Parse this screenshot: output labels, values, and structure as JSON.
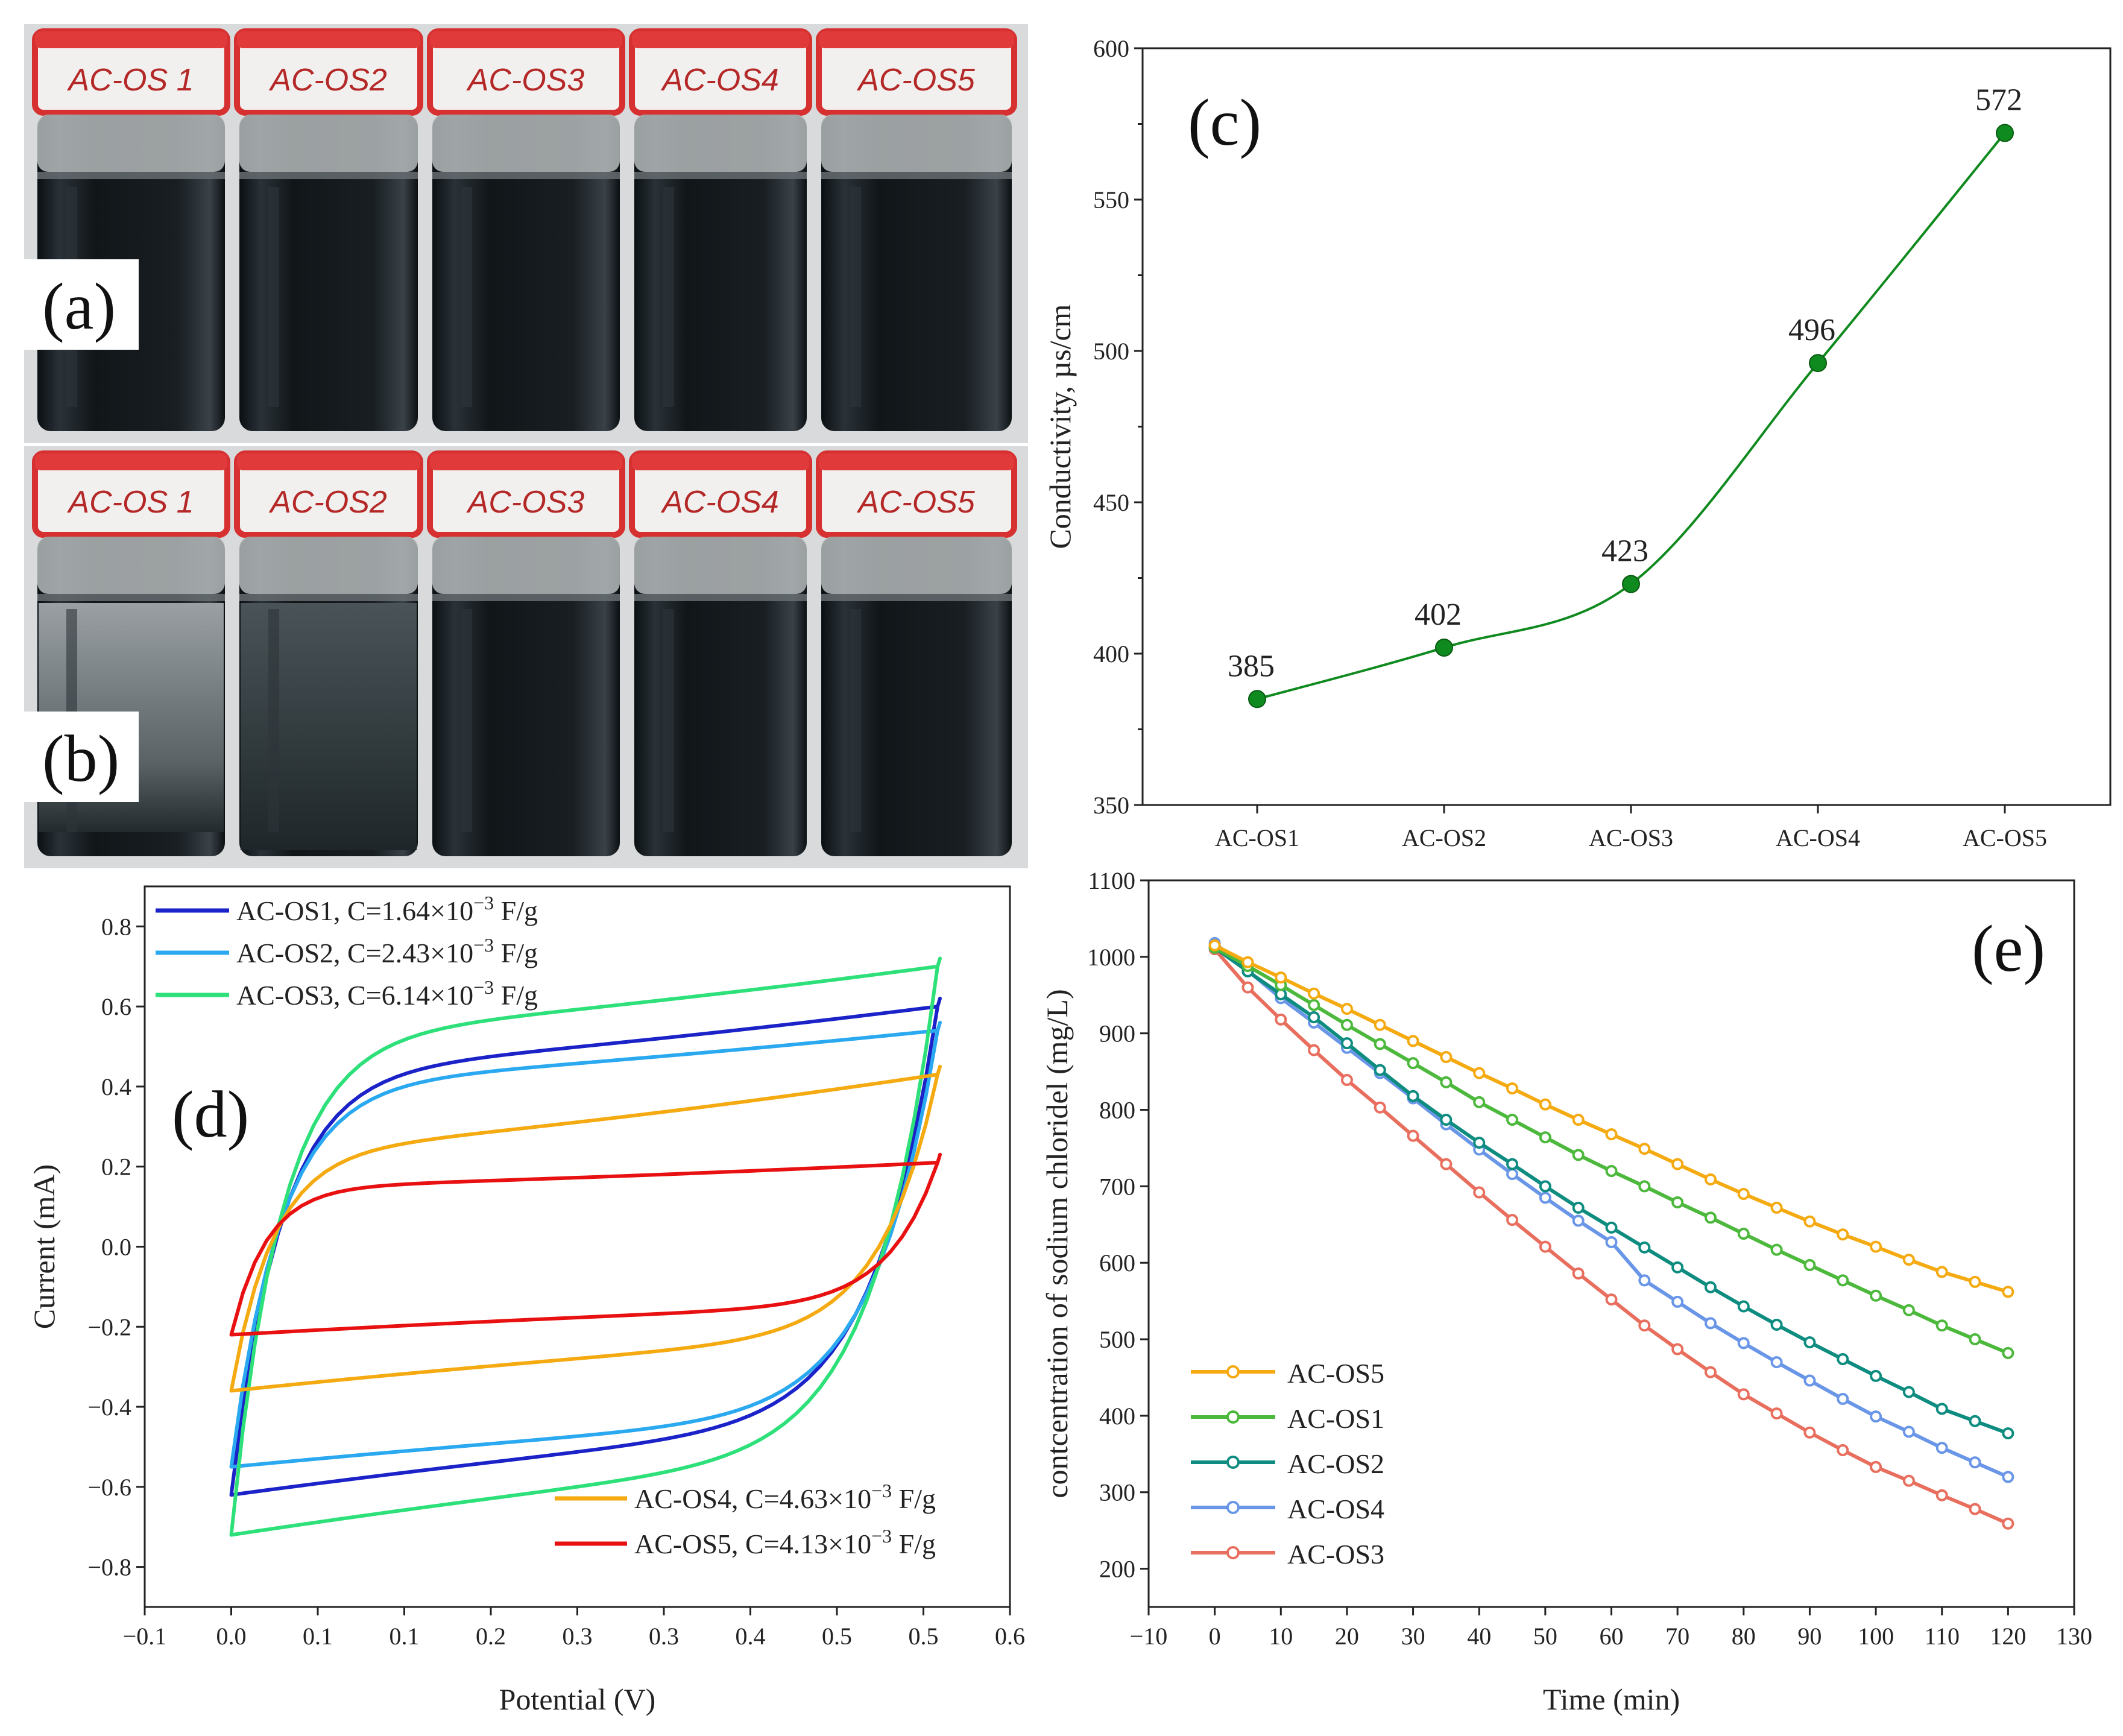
{
  "photos": {
    "a": {
      "label": "(a)",
      "vials": [
        "AC-OS 1",
        "AC-OS2",
        "AC-OS3",
        "AC-OS4",
        "AC-OS5"
      ]
    },
    "b": {
      "label": "(b)",
      "vials": [
        "AC-OS 1",
        "AC-OS2",
        "AC-OS3",
        "AC-OS4",
        "AC-OS5"
      ]
    }
  },
  "chart_data": [
    {
      "id": "c",
      "type": "line",
      "panel_label": "(c)",
      "title": "",
      "xlabel": "",
      "ylabel": "Conductivity, µs/cm",
      "categories": [
        "AC-OS1",
        "AC-OS2",
        "AC-OS3",
        "AC-OS4",
        "AC-OS5"
      ],
      "values": [
        385,
        402,
        423,
        496,
        572
      ],
      "data_labels": [
        "385",
        "402",
        "423",
        "496",
        "572"
      ],
      "ylim": [
        350,
        600
      ],
      "yticks": [
        350,
        400,
        450,
        500,
        550,
        600
      ],
      "color": "#0f8a1e"
    },
    {
      "id": "d",
      "type": "line",
      "panel_label": "(d)",
      "xlabel": "Potential (V)",
      "ylabel": "Current (mA)",
      "xlim": [
        -0.1,
        0.6
      ],
      "ylim": [
        -0.9,
        0.9
      ],
      "xtick_labels": [
        "−0.1",
        "0.0",
        "0.1",
        "0.1",
        "0.2",
        "0.3",
        "0.3",
        "0.4",
        "0.5",
        "0.5",
        "0.6"
      ],
      "ytick_values": [
        -0.8,
        -0.6,
        -0.4,
        -0.2,
        0.0,
        0.2,
        0.4,
        0.6,
        0.8
      ],
      "ytick_labels": [
        "−0.8",
        "−0.6",
        "−0.4",
        "−0.2",
        "0.0",
        "0.2",
        "0.4",
        "0.6",
        "0.8"
      ],
      "potential_range": [
        0.0,
        0.5
      ],
      "series": [
        {
          "name": "AC-OS1",
          "legend": "AC-OS1, C=1.64×10",
          "exp": "−3",
          "unit": " F/g",
          "color": "#1a22c8",
          "bottom_start": -0.62,
          "bottom_end": 0.6,
          "top_start": -0.62,
          "top_end": 0.6,
          "bottom_mid": -0.45,
          "top_mid": 0.44,
          "k_top": 0.07,
          "k_bot": 0.09
        },
        {
          "name": "AC-OS2",
          "legend": "AC-OS2, C=2.43×10",
          "exp": "−3",
          "unit": " F/g",
          "color": "#2aa8f0",
          "bottom_start": -0.55,
          "bottom_end": 0.54,
          "top_start": -0.55,
          "top_end": 0.54,
          "bottom_mid": -0.43,
          "top_mid": 0.41,
          "k_top": 0.07,
          "k_bot": 0.09
        },
        {
          "name": "AC-OS3",
          "legend": "AC-OS3, C=6.14×10",
          "exp": "−3",
          "unit": " F/g",
          "color": "#2ee07a",
          "bottom_start": -0.72,
          "bottom_end": 0.7,
          "top_start": -0.72,
          "top_end": 0.7,
          "bottom_mid": -0.53,
          "top_mid": 0.53,
          "k_top": 0.07,
          "k_bot": 0.09
        },
        {
          "name": "AC-OS4",
          "legend": "AC-OS4, C=4.63×10",
          "exp": "−3",
          "unit": " F/g",
          "color": "#f4aa10",
          "bottom_start": -0.36,
          "bottom_end": 0.43,
          "top_start": -0.36,
          "top_end": 0.43,
          "bottom_mid": -0.23,
          "top_mid": 0.24,
          "k_top": 0.06,
          "k_bot": 0.08
        },
        {
          "name": "AC-OS5",
          "legend": "AC-OS5, C=4.13×10",
          "exp": "−3",
          "unit": " F/g",
          "color": "#e81010",
          "bottom_start": -0.22,
          "bottom_end": 0.21,
          "top_start": -0.22,
          "top_end": 0.21,
          "bottom_mid": -0.15,
          "top_mid": 0.15,
          "k_top": 0.05,
          "k_bot": 0.07
        }
      ]
    },
    {
      "id": "e",
      "type": "line",
      "panel_label": "(e)",
      "xlabel": "Time (min)",
      "ylabel": "contcentration of sodium chloridel (mg/L)",
      "xlim": [
        -10,
        130
      ],
      "ylim": [
        150,
        1100
      ],
      "xticks": [
        -10,
        0,
        10,
        20,
        30,
        40,
        50,
        60,
        70,
        80,
        90,
        100,
        110,
        120,
        130
      ],
      "xtick_labels": [
        "−10",
        "0",
        "10",
        "20",
        "30",
        "40",
        "50",
        "60",
        "70",
        "80",
        "90",
        "100",
        "110",
        "120",
        "130"
      ],
      "yticks": [
        200,
        300,
        400,
        500,
        600,
        700,
        800,
        900,
        1000,
        1100
      ],
      "x": [
        0,
        5,
        10,
        15,
        20,
        25,
        30,
        35,
        40,
        45,
        50,
        55,
        60,
        65,
        70,
        75,
        80,
        85,
        90,
        95,
        100,
        105,
        110,
        115,
        120
      ],
      "series": [
        {
          "name": "AC-OS5",
          "color": "#f4aa10",
          "values": [
            1015,
            993,
            973,
            952,
            932,
            911,
            890,
            869,
            848,
            828,
            807,
            787,
            768,
            749,
            729,
            709,
            690,
            672,
            654,
            637,
            621,
            604,
            588,
            575,
            562
          ]
        },
        {
          "name": "AC-OS1",
          "color": "#4cb83c",
          "values": [
            1012,
            988,
            963,
            937,
            911,
            886,
            861,
            836,
            810,
            787,
            764,
            741,
            720,
            700,
            679,
            659,
            638,
            617,
            597,
            577,
            557,
            538,
            518,
            500,
            482
          ]
        },
        {
          "name": "AC-OS2",
          "color": "#0e8c80",
          "values": [
            1012,
            981,
            951,
            921,
            887,
            852,
            818,
            787,
            757,
            729,
            700,
            672,
            646,
            620,
            594,
            568,
            543,
            519,
            496,
            474,
            452,
            431,
            409,
            393,
            377
          ]
        },
        {
          "name": "AC-OS4",
          "color": "#6a96e8",
          "values": [
            1018,
            982,
            946,
            914,
            881,
            848,
            815,
            781,
            748,
            716,
            685,
            655,
            627,
            577,
            549,
            521,
            495,
            470,
            446,
            422,
            399,
            379,
            358,
            339,
            320
          ]
        },
        {
          "name": "AC-OS3",
          "color": "#e86e5e",
          "values": [
            1010,
            960,
            918,
            878,
            839,
            803,
            766,
            729,
            692,
            656,
            621,
            586,
            552,
            518,
            487,
            457,
            428,
            403,
            378,
            355,
            333,
            315,
            296,
            278,
            259
          ]
        }
      ]
    }
  ]
}
